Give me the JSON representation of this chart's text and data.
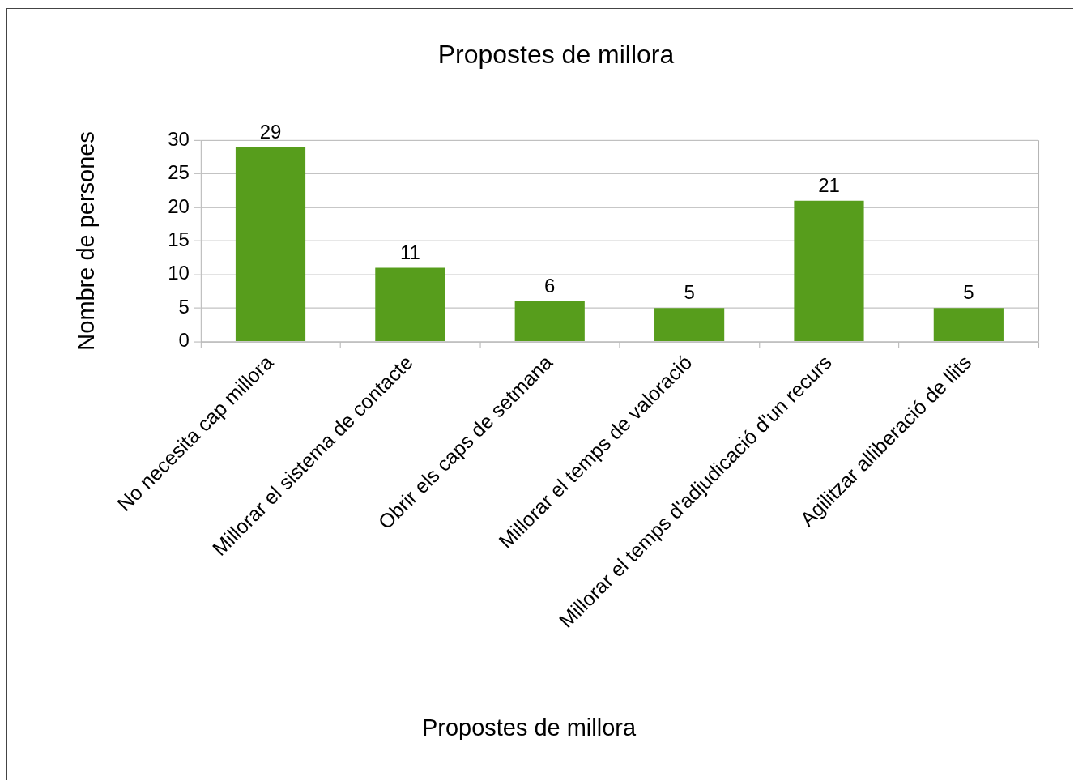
{
  "chart_data": {
    "type": "bar",
    "title": "Propostes de millora",
    "xlabel": "Propostes de millora",
    "ylabel": "Nombre de persones",
    "categories": [
      "No necesita cap millora",
      "Millorar el sistema de contacte",
      "Obrir els caps de setmana",
      "Millorar el temps de valoració",
      "Millorar el temps d'adjudicació d'un recurs",
      "Agilitzar alliberació de llits"
    ],
    "values": [
      29,
      11,
      6,
      5,
      21,
      5
    ],
    "color": "#579d1c",
    "ylim": [
      0,
      30
    ],
    "yticks": [
      0,
      5,
      10,
      15,
      20,
      25,
      30
    ],
    "grid": "y",
    "data_labels": true
  }
}
